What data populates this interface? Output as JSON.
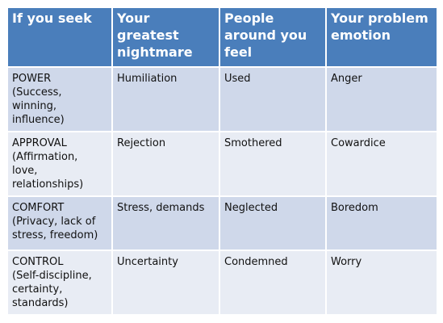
{
  "table": {
    "headers": [
      "If you seek",
      "Your greatest nightmare",
      "People around you feel",
      "Your problem emotion"
    ],
    "rows": [
      {
        "seek": "POWER",
        "seek_detail": " (Success,\nwinning,\ninfluence)",
        "nightmare": "Humiliation",
        "people_feel": "Used",
        "emotion": "Anger"
      },
      {
        "seek": "APPROVAL",
        "seek_detail": "(Affirmation,\nlove,\nrelationships)",
        "nightmare": "Rejection",
        "people_feel": "Smothered",
        "emotion": "Cowardice"
      },
      {
        "seek": "COMFORT",
        "seek_detail": "(Privacy, lack of\nstress, freedom)",
        "nightmare": "Stress, demands",
        "people_feel": "Neglected",
        "emotion": "Boredom"
      },
      {
        "seek": "CONTROL",
        "seek_detail": "(Self-discipline,\ncertainty,\nstandards)",
        "nightmare": "Uncertainty",
        "people_feel": "Condemned",
        "emotion": "Worry"
      }
    ]
  },
  "colors": {
    "header_bg": "#4a7ebb",
    "header_text": "#ffffff",
    "band_dark": "#cfd8ea",
    "band_light": "#e8ecf4"
  }
}
